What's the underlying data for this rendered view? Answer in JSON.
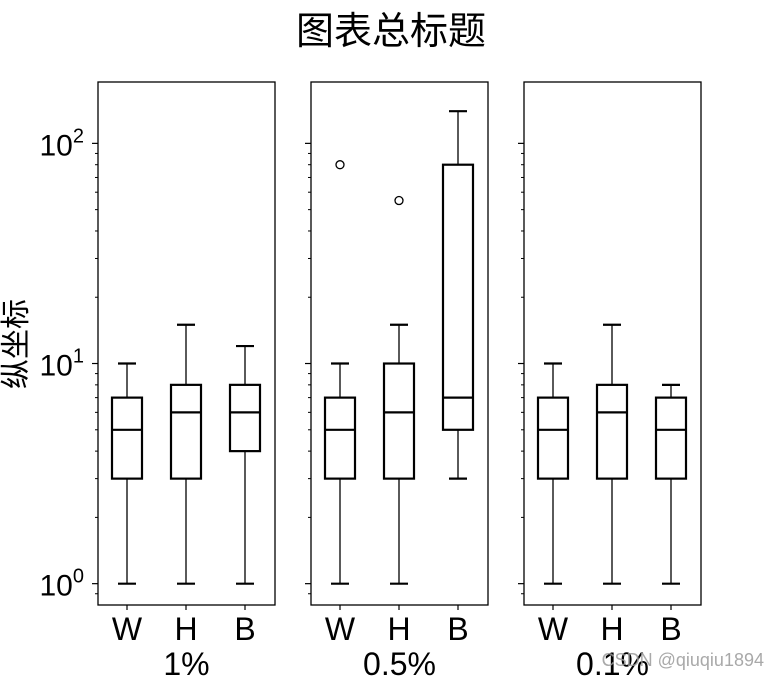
{
  "title": "图表总标题",
  "ylabel": "纵坐标",
  "watermark": "CSDN @qiuqiu1894",
  "chart_data": {
    "type": "boxplot",
    "title": "图表总标题",
    "ylabel": "纵坐标",
    "yscale": "log",
    "ylim": [
      0.8,
      190
    ],
    "yticks": [
      {
        "value": 1,
        "label_base": "10",
        "label_exp": "0"
      },
      {
        "value": 10,
        "label_base": "10",
        "label_exp": "1"
      },
      {
        "value": 100,
        "label_base": "10",
        "label_exp": "2"
      }
    ],
    "categories": [
      "W",
      "H",
      "B"
    ],
    "panels": [
      {
        "label": "1%",
        "boxes": [
          {
            "category": "W",
            "whislo": 1,
            "q1": 3,
            "med": 5,
            "q3": 7,
            "whishi": 10,
            "fliers": []
          },
          {
            "category": "H",
            "whislo": 1,
            "q1": 3,
            "med": 6,
            "q3": 8,
            "whishi": 15,
            "fliers": []
          },
          {
            "category": "B",
            "whislo": 1,
            "q1": 4,
            "med": 6,
            "q3": 8,
            "whishi": 12,
            "fliers": []
          }
        ]
      },
      {
        "label": "0.5%",
        "boxes": [
          {
            "category": "W",
            "whislo": 1,
            "q1": 3,
            "med": 5,
            "q3": 7,
            "whishi": 10,
            "fliers": [
              80
            ]
          },
          {
            "category": "H",
            "whislo": 1,
            "q1": 3,
            "med": 6,
            "q3": 10,
            "whishi": 15,
            "fliers": [
              55
            ]
          },
          {
            "category": "B",
            "whislo": 3,
            "q1": 5,
            "med": 7,
            "q3": 80,
            "whishi": 140,
            "fliers": []
          }
        ]
      },
      {
        "label": "0.1%",
        "boxes": [
          {
            "category": "W",
            "whislo": 1,
            "q1": 3,
            "med": 5,
            "q3": 7,
            "whishi": 10,
            "fliers": []
          },
          {
            "category": "H",
            "whislo": 1,
            "q1": 3,
            "med": 6,
            "q3": 8,
            "whishi": 15,
            "fliers": []
          },
          {
            "category": "B",
            "whislo": 1,
            "q1": 3,
            "med": 5,
            "q3": 7,
            "whishi": 8,
            "fliers": []
          }
        ]
      }
    ]
  }
}
